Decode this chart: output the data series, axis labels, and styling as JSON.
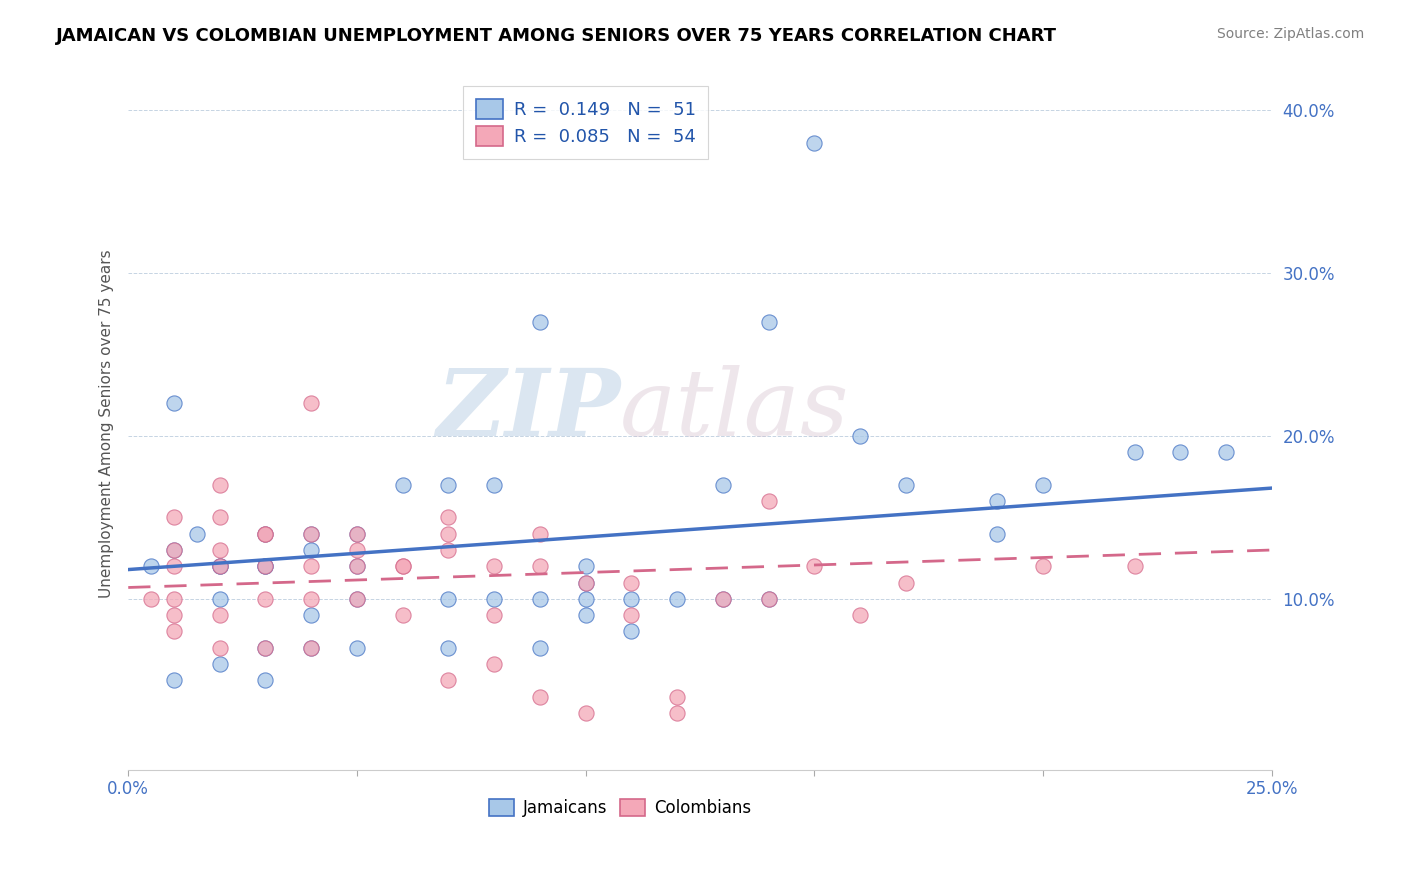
{
  "title": "JAMAICAN VS COLOMBIAN UNEMPLOYMENT AMONG SENIORS OVER 75 YEARS CORRELATION CHART",
  "source": "Source: ZipAtlas.com",
  "ylabel": "Unemployment Among Seniors over 75 years",
  "xlabel": "",
  "xlim": [
    0.0,
    0.25
  ],
  "ylim": [
    -0.005,
    0.42
  ],
  "xticks": [
    0.0,
    0.05,
    0.1,
    0.15,
    0.2,
    0.25
  ],
  "xtick_labels": [
    "0.0%",
    "",
    "",
    "",
    "",
    "25.0%"
  ],
  "yticks": [
    0.1,
    0.2,
    0.3,
    0.4
  ],
  "ytick_labels": [
    "10.0%",
    "20.0%",
    "30.0%",
    "40.0%"
  ],
  "jamaican_color": "#a8c8e8",
  "colombian_color": "#f4a8b8",
  "jamaican_line_color": "#4472c4",
  "colombian_line_color": "#d4688a",
  "watermark_zip": "ZIP",
  "watermark_atlas": "atlas",
  "legend_R_jamaican": "R =  0.149",
  "legend_N_jamaican": "N =  51",
  "legend_R_colombian": "R =  0.085",
  "legend_N_colombian": "N =  54",
  "jamaican_x": [
    0.005,
    0.01,
    0.01,
    0.01,
    0.015,
    0.02,
    0.02,
    0.02,
    0.02,
    0.03,
    0.03,
    0.03,
    0.03,
    0.03,
    0.04,
    0.04,
    0.04,
    0.04,
    0.05,
    0.05,
    0.05,
    0.05,
    0.06,
    0.07,
    0.07,
    0.07,
    0.08,
    0.08,
    0.09,
    0.09,
    0.09,
    0.1,
    0.1,
    0.1,
    0.1,
    0.11,
    0.11,
    0.12,
    0.13,
    0.13,
    0.14,
    0.14,
    0.15,
    0.16,
    0.17,
    0.19,
    0.19,
    0.2,
    0.22,
    0.23,
    0.24
  ],
  "jamaican_y": [
    0.12,
    0.13,
    0.05,
    0.22,
    0.14,
    0.12,
    0.12,
    0.1,
    0.06,
    0.12,
    0.14,
    0.12,
    0.07,
    0.05,
    0.14,
    0.13,
    0.09,
    0.07,
    0.14,
    0.12,
    0.1,
    0.07,
    0.17,
    0.17,
    0.1,
    0.07,
    0.17,
    0.1,
    0.27,
    0.1,
    0.07,
    0.12,
    0.11,
    0.1,
    0.09,
    0.1,
    0.08,
    0.1,
    0.17,
    0.1,
    0.27,
    0.1,
    0.38,
    0.2,
    0.17,
    0.16,
    0.14,
    0.17,
    0.19,
    0.19,
    0.19
  ],
  "colombian_x": [
    0.005,
    0.01,
    0.01,
    0.01,
    0.01,
    0.01,
    0.01,
    0.02,
    0.02,
    0.02,
    0.02,
    0.02,
    0.02,
    0.03,
    0.03,
    0.03,
    0.03,
    0.03,
    0.04,
    0.04,
    0.04,
    0.04,
    0.04,
    0.05,
    0.05,
    0.05,
    0.05,
    0.06,
    0.06,
    0.06,
    0.07,
    0.07,
    0.07,
    0.07,
    0.08,
    0.08,
    0.08,
    0.09,
    0.09,
    0.09,
    0.1,
    0.1,
    0.11,
    0.11,
    0.12,
    0.12,
    0.13,
    0.14,
    0.14,
    0.15,
    0.16,
    0.17,
    0.2,
    0.22
  ],
  "colombian_y": [
    0.1,
    0.15,
    0.13,
    0.12,
    0.1,
    0.09,
    0.08,
    0.17,
    0.15,
    0.13,
    0.12,
    0.09,
    0.07,
    0.14,
    0.14,
    0.12,
    0.1,
    0.07,
    0.22,
    0.14,
    0.12,
    0.1,
    0.07,
    0.14,
    0.13,
    0.12,
    0.1,
    0.12,
    0.12,
    0.09,
    0.15,
    0.14,
    0.13,
    0.05,
    0.12,
    0.09,
    0.06,
    0.14,
    0.12,
    0.04,
    0.11,
    0.03,
    0.11,
    0.09,
    0.04,
    0.03,
    0.1,
    0.16,
    0.1,
    0.12,
    0.09,
    0.11,
    0.12,
    0.12
  ],
  "jam_trend_x": [
    0.0,
    0.25
  ],
  "jam_trend_y": [
    0.118,
    0.168
  ],
  "col_trend_x": [
    0.0,
    0.25
  ],
  "col_trend_y": [
    0.107,
    0.13
  ]
}
